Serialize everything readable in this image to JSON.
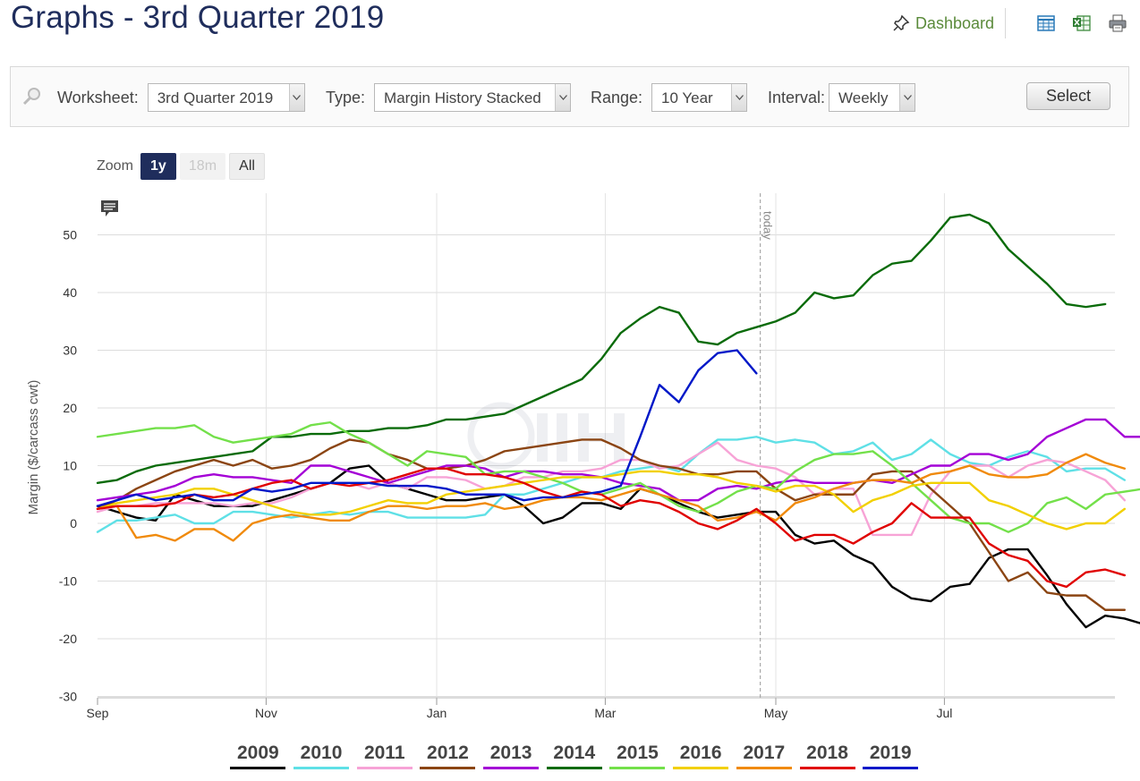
{
  "page": {
    "title": "Graphs - 3rd Quarter 2019",
    "dashboard_label": "Dashboard"
  },
  "toolbar_icons": [
    "table-icon",
    "excel-icon",
    "print-icon"
  ],
  "controls": {
    "worksheet": {
      "label": "Worksheet:",
      "value": "3rd Quarter 2019"
    },
    "type": {
      "label": "Type:",
      "value": "Margin History Stacked"
    },
    "range": {
      "label": "Range:",
      "value": "10 Year"
    },
    "interval": {
      "label": "Interval:",
      "value": "Weekly"
    },
    "select_label": "Select"
  },
  "zoom": {
    "label": "Zoom",
    "buttons": [
      "1y",
      "18m",
      "All"
    ],
    "active": "1y",
    "disabled": [
      "18m"
    ]
  },
  "chart_data": {
    "type": "line",
    "title": "",
    "xlabel": "",
    "ylabel": "Margin ($/carcass cwt)",
    "ylim": [
      -30,
      55
    ],
    "yticks": [
      50,
      40,
      30,
      20,
      10,
      0,
      -10,
      -20,
      -30
    ],
    "xlim_weeks": [
      0,
      52.5
    ],
    "x_month_ticks": [
      {
        "label": "Sep",
        "week": 0
      },
      {
        "label": "Nov",
        "week": 8.7
      },
      {
        "label": "Jan",
        "week": 17.5
      },
      {
        "label": "Mar",
        "week": 26.2
      },
      {
        "label": "May",
        "week": 35
      },
      {
        "label": "Jul",
        "week": 43.7
      }
    ],
    "grid": true,
    "today_marker": {
      "label": "today",
      "week": 34.2
    },
    "legend_placement": "bottom",
    "series": [
      {
        "name": "2009",
        "color": "#000000",
        "values": [
          3,
          2,
          1,
          0.5,
          5,
          4,
          3,
          3,
          3,
          4,
          5,
          6,
          7,
          9.5,
          10,
          7,
          6,
          5,
          4,
          4,
          4.5,
          5,
          3,
          0,
          1,
          3.5,
          3.5,
          2.5,
          6,
          5,
          3.5,
          2,
          1,
          1.5,
          2,
          2,
          -2,
          -3.5,
          -3,
          -5.5,
          -7,
          -11,
          -13,
          -13.5,
          -11,
          -10.5,
          -6,
          -4.5,
          -4.5,
          -9,
          -14,
          -18,
          -16,
          -16.5,
          -17.5
        ]
      },
      {
        "name": "2010",
        "color": "#5fe0e6",
        "values": [
          -1.5,
          0.5,
          0.5,
          1,
          1.5,
          0,
          0,
          2,
          2,
          1.5,
          1,
          1.5,
          2,
          1.5,
          2,
          2,
          1,
          1,
          1,
          1,
          1.5,
          5,
          5,
          6,
          7,
          8,
          8,
          9,
          9.5,
          10,
          9,
          12,
          14.5,
          14.5,
          15,
          14,
          14.5,
          14,
          12,
          12.5,
          14,
          11,
          12,
          14.5,
          12,
          10.5,
          10,
          11.5,
          12.5,
          11.5,
          9,
          9.5,
          9.5,
          7.5
        ]
      },
      {
        "name": "2011",
        "color": "#f7a3d6",
        "values": [
          2,
          3,
          3,
          3.5,
          3.5,
          3.5,
          3.5,
          3,
          3.5,
          3.5,
          4.5,
          6,
          7,
          7,
          6,
          7,
          6,
          8,
          8,
          7.5,
          6,
          6.5,
          8,
          8,
          9,
          9,
          9.5,
          11,
          11,
          9.5,
          10,
          12,
          14,
          11,
          10,
          9.5,
          8,
          5,
          6,
          6,
          -2,
          -2,
          -2,
          5,
          9,
          10,
          10,
          8,
          10,
          11,
          10.5,
          9,
          7.5,
          4
        ]
      },
      {
        "name": "2012",
        "color": "#8b4513",
        "values": [
          2.5,
          4,
          6,
          7.5,
          9,
          10,
          11,
          10,
          11,
          9.5,
          10,
          11,
          13,
          14.5,
          14,
          12,
          11,
          9.5,
          9.5,
          10,
          11,
          12.5,
          13,
          13.5,
          14,
          14.5,
          14.5,
          13,
          11,
          10,
          9.5,
          8.5,
          8.5,
          9,
          9,
          6,
          4,
          5,
          5,
          5,
          8.5,
          9,
          9,
          6,
          3,
          0,
          -5,
          -10,
          -8.5,
          -12,
          -12.5,
          -12.5,
          -15,
          -15
        ]
      },
      {
        "name": "2013",
        "color": "#a400d6",
        "values": [
          4,
          4.5,
          5,
          5.5,
          6.5,
          8,
          8.5,
          8,
          8,
          7.5,
          7,
          10,
          10,
          9,
          8,
          7,
          8,
          9,
          10,
          10,
          9.5,
          8,
          9,
          9,
          8.5,
          8.5,
          8,
          7,
          6.5,
          6,
          4,
          4,
          6,
          6.5,
          6,
          7,
          7.5,
          7,
          7,
          7,
          7.5,
          7,
          8.5,
          10,
          10,
          12,
          12,
          11,
          12,
          15,
          16.5,
          18,
          18,
          15,
          15
        ]
      },
      {
        "name": "2014",
        "color": "#0a6b0a",
        "values": [
          7,
          7.5,
          9,
          10,
          10.5,
          11,
          11.5,
          12,
          12.5,
          15,
          15,
          15.5,
          15.5,
          16,
          16,
          16.5,
          16.5,
          17,
          18,
          18,
          18.5,
          19,
          20.5,
          22,
          23.5,
          25,
          28.5,
          33,
          35.5,
          37.5,
          36.5,
          31.5,
          31,
          33,
          34,
          35,
          36.5,
          40,
          39,
          39.5,
          43,
          45,
          45.5,
          49,
          53,
          53.5,
          52,
          47.5,
          44.5,
          41.5,
          38,
          37.5,
          38
        ]
      },
      {
        "name": "2015",
        "color": "#73e04a",
        "values": [
          15,
          15.5,
          16,
          16.5,
          16.5,
          17,
          15,
          14,
          14.5,
          15,
          15.5,
          17,
          17.5,
          15.5,
          14,
          12,
          10,
          12.5,
          12,
          11.5,
          8.5,
          9,
          9,
          8,
          7,
          5.5,
          5,
          6,
          7,
          5,
          3,
          2,
          3.5,
          5.5,
          6.5,
          6,
          9,
          11,
          12,
          12,
          12.5,
          10,
          7,
          4,
          1,
          0,
          0,
          -1.5,
          0,
          3.5,
          4.5,
          2.5,
          5,
          5.5,
          6
        ]
      },
      {
        "name": "2016",
        "color": "#f2d000",
        "values": [
          2.5,
          3.5,
          4,
          4.5,
          5,
          6,
          6,
          5,
          4,
          3,
          2,
          1.5,
          1.5,
          2,
          3,
          4,
          3.5,
          3.5,
          5,
          5.5,
          6,
          6.5,
          7,
          7.5,
          8,
          8,
          8,
          8.5,
          9,
          9,
          8.5,
          8.5,
          8,
          7,
          6.5,
          5.5,
          6.5,
          6.5,
          5,
          2,
          4,
          5,
          6.5,
          7,
          7,
          7,
          4,
          3,
          1.5,
          0,
          -1,
          0,
          0,
          2.5
        ]
      },
      {
        "name": "2017",
        "color": "#f08a0b",
        "values": [
          2.5,
          3,
          -2.5,
          -2,
          -3,
          -1,
          -1,
          -3,
          0,
          1,
          1.5,
          1,
          0.5,
          0.5,
          2,
          3,
          3,
          2.5,
          3,
          3,
          3.5,
          2.5,
          3,
          4,
          4.5,
          4.5,
          4,
          5,
          6,
          5,
          4,
          3,
          0.5,
          1,
          2,
          0.5,
          3.5,
          4.5,
          6,
          7,
          7.5,
          7.5,
          7,
          8.5,
          9,
          10,
          8.5,
          8,
          8,
          8.5,
          10.5,
          12,
          10.5,
          9.5
        ]
      },
      {
        "name": "2018",
        "color": "#e00000",
        "values": [
          2.5,
          3,
          3,
          3,
          3.5,
          5,
          4.5,
          5,
          6,
          7,
          7.5,
          6,
          7,
          6.5,
          7,
          7.5,
          8.5,
          9.5,
          9.5,
          8.5,
          8.5,
          8,
          7,
          5.5,
          4.5,
          5.5,
          5,
          3,
          4,
          3.5,
          2,
          0,
          -1,
          0.5,
          2.5,
          0,
          -3,
          -2,
          -2,
          -3.5,
          -1.5,
          0,
          3.5,
          1,
          1,
          1,
          -3.5,
          -5.5,
          -6.5,
          -10,
          -11,
          -8.5,
          -8,
          -9
        ]
      },
      {
        "name": "2019",
        "color": "#0018c8",
        "values": [
          3,
          4,
          5,
          4,
          4.5,
          5,
          4,
          4,
          6,
          5.5,
          6,
          7,
          7,
          7,
          7,
          6.5,
          6.5,
          6.5,
          6,
          5,
          5,
          5,
          4,
          4.5,
          4.5,
          5,
          5.5,
          6.5,
          15,
          24,
          21,
          26.5,
          29.5,
          30,
          26
        ]
      }
    ]
  }
}
